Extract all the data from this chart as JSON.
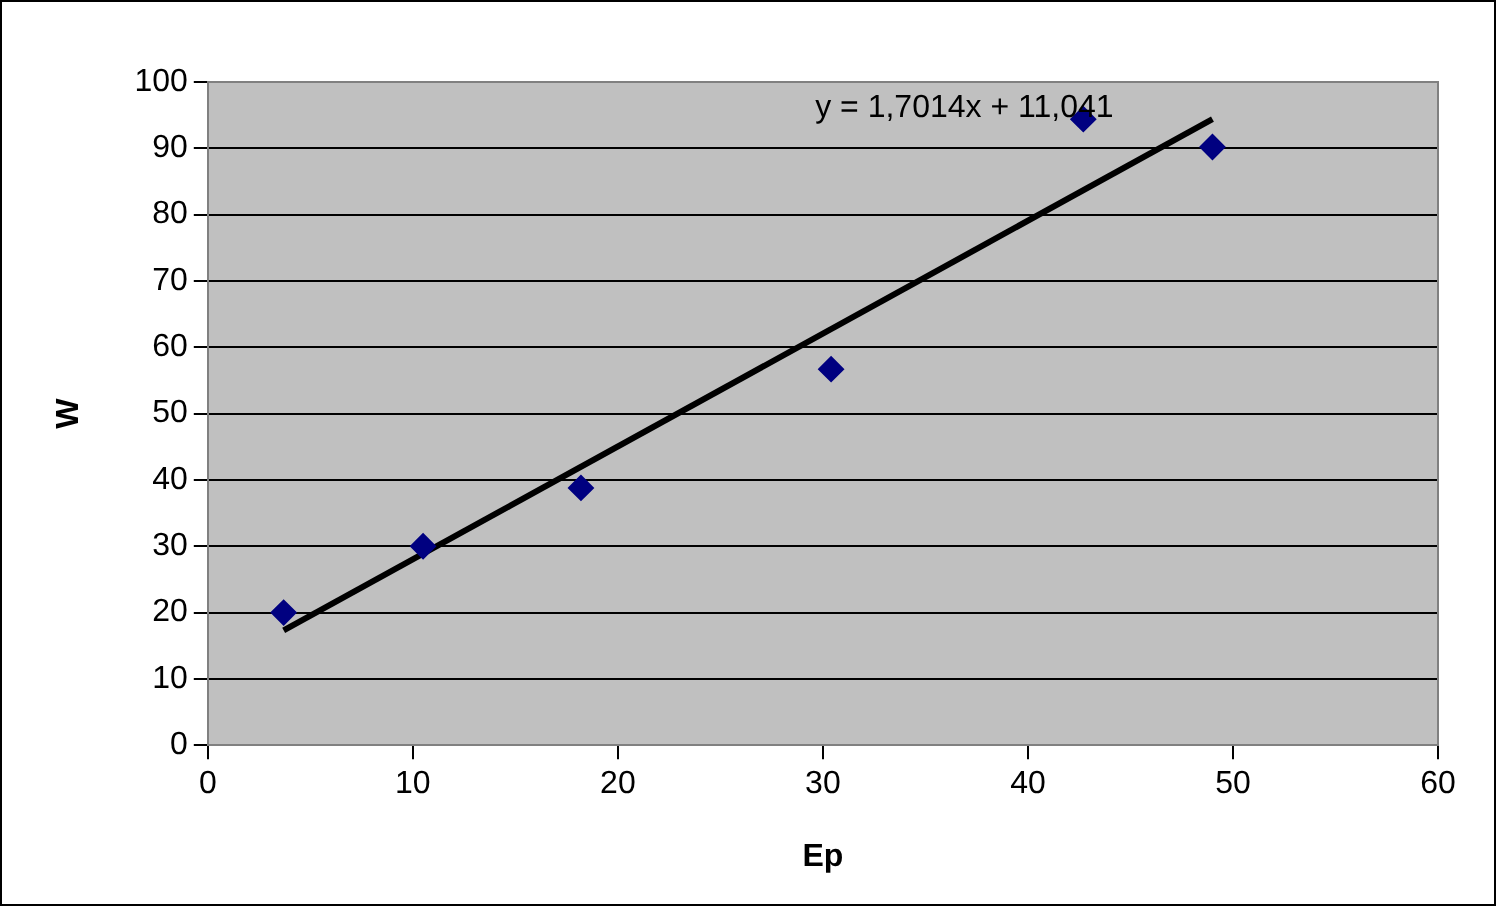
{
  "chart_data": {
    "type": "scatter",
    "xlabel": "Ep",
    "ylabel": "W",
    "xlim": [
      0,
      60
    ],
    "xticks": [
      0,
      10,
      20,
      30,
      40,
      50,
      60
    ],
    "ylim": [
      0,
      100
    ],
    "yticks": [
      0,
      10,
      20,
      30,
      40,
      50,
      60,
      70,
      80,
      90,
      100
    ],
    "grid": "y",
    "marker": "diamond",
    "series": [
      {
        "type": "scatter",
        "color": "#000080",
        "x": [
          3.7,
          10.5,
          18.2,
          30.4,
          42.7,
          49.0
        ],
        "values": [
          20,
          30,
          38.8,
          56.7,
          94.4,
          90.2
        ]
      },
      {
        "type": "line",
        "color": "#000000",
        "marker": "none",
        "x": [
          3.7,
          49.0
        ],
        "values": [
          17.3,
          94.4
        ]
      }
    ],
    "annotations": [
      "y = 1,7014x + 11,041"
    ]
  }
}
